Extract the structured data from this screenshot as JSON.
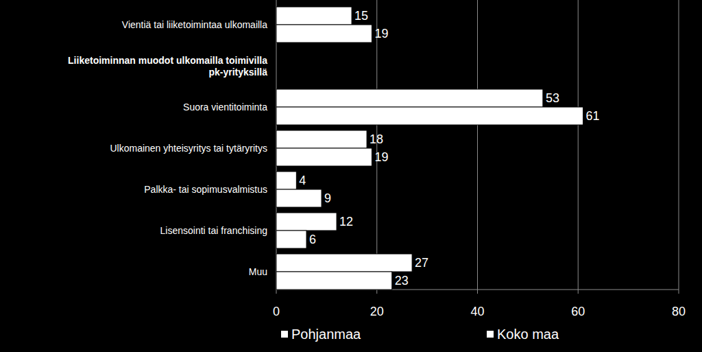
{
  "chart_data": {
    "type": "bar",
    "orientation": "horizontal",
    "categories": [
      "Vientiä tai liiketoimintaa ulkomailla",
      "Liiketoiminnan muodot ulkomailla toimivilla pk-yrityksillä",
      "Suora vientitoiminta",
      "Ulkomainen yhteisyritys tai tytäryritys",
      "Palkka- tai sopimusvalmistus",
      "Lisensointi tai franchising",
      "Muu"
    ],
    "series": [
      {
        "name": "Pohjanmaa",
        "color": "#ffffff",
        "values": [
          15,
          null,
          53,
          18,
          4,
          12,
          27
        ]
      },
      {
        "name": "Koko maa",
        "color": "#ffffff",
        "values": [
          19,
          null,
          61,
          19,
          9,
          6,
          23
        ]
      }
    ],
    "xlim": [
      0,
      80
    ],
    "xticks": [
      0,
      20,
      40,
      60,
      80
    ],
    "grid": true,
    "data_labels": true,
    "legend": "bottom"
  }
}
